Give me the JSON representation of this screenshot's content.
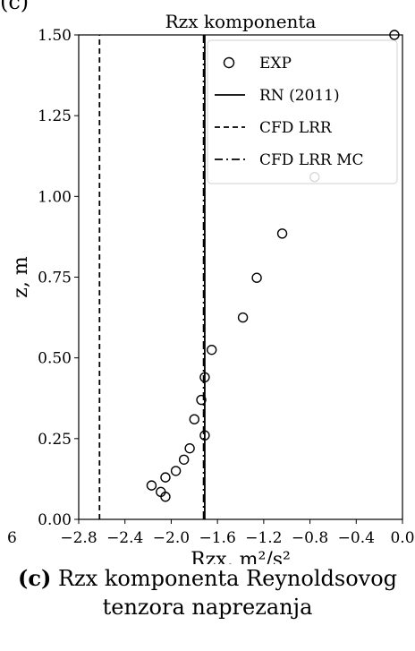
{
  "corner_label": "(c)",
  "caption": {
    "label": "(c)",
    "line1": "Rzx komponenta Reynoldsovog",
    "line2": "tenzora naprezanja"
  },
  "chart_data": {
    "type": "scatter",
    "title": "Rzx komponenta",
    "xlabel": "Rzx, m²/s²",
    "ylabel": "z, m",
    "xlim": [
      -2.8,
      0.0
    ],
    "ylim": [
      0.0,
      1.5
    ],
    "xticks": [
      "−2.8",
      "−2.4",
      "−2.0",
      "−1.6",
      "−1.2",
      "−0.8",
      "−0.4",
      "0.0"
    ],
    "xtick_values": [
      -2.8,
      -2.4,
      -2.0,
      -1.6,
      -1.2,
      -0.8,
      -0.4,
      0.0
    ],
    "yticks": [
      "0.00",
      "0.25",
      "0.50",
      "0.75",
      "1.00",
      "1.25",
      "1.50"
    ],
    "ytick_values": [
      0.0,
      0.25,
      0.5,
      0.75,
      1.0,
      1.25,
      1.5
    ],
    "stray_tick_label": "6",
    "legend_position": "top-right",
    "series": [
      {
        "name": "EXP",
        "marker": "open-circle",
        "x": [
          -0.07,
          -0.76,
          -1.04,
          -1.26,
          -1.38,
          -1.65,
          -1.71,
          -1.74,
          -1.8,
          -1.71,
          -1.84,
          -1.89,
          -1.96,
          -2.05,
          -2.05,
          -2.09,
          -2.17
        ],
        "y": [
          1.5,
          1.06,
          0.885,
          0.748,
          0.625,
          0.525,
          0.44,
          0.37,
          0.31,
          0.26,
          0.22,
          0.185,
          0.15,
          0.13,
          0.07,
          0.085,
          0.105
        ]
      },
      {
        "name": "RN (2011)",
        "line_style": "solid",
        "x": [
          -1.71,
          -1.71
        ],
        "y": [
          0.0,
          1.5
        ]
      },
      {
        "name": "CFD LRR",
        "line_style": "dashed",
        "x": [
          -2.62,
          -2.62
        ],
        "y": [
          0.0,
          1.5
        ]
      },
      {
        "name": "CFD LRR MC",
        "line_style": "dashdot",
        "x": [
          -1.72,
          -1.72
        ],
        "y": [
          0.0,
          1.5
        ]
      }
    ]
  }
}
